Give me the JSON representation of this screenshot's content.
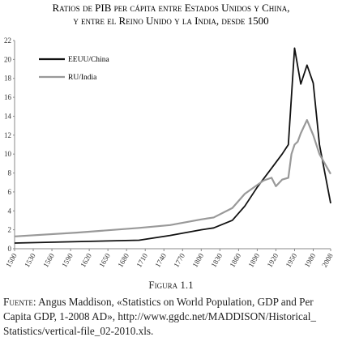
{
  "chart_data": {
    "type": "line",
    "title": [
      "Ratios de PIB per cápita entre Estados Unidos y China,",
      "y entre el Reino Unido y la India, desde 1500"
    ],
    "series": [
      {
        "name": "EEUU/China",
        "color": "#111111",
        "x": [
          1500,
          1600,
          1700,
          1750,
          1800,
          1820,
          1850,
          1870,
          1890,
          1913,
          1930,
          1940,
          1950,
          1960,
          1970,
          1980,
          1990,
          2008
        ],
        "values": [
          0.6,
          0.75,
          0.9,
          1.4,
          2.0,
          2.2,
          3.0,
          4.5,
          6.5,
          8.5,
          10,
          11,
          21.2,
          17.4,
          19.4,
          17.5,
          11,
          4.8
        ]
      },
      {
        "name": "RU/India",
        "color": "#999999",
        "x": [
          1500,
          1600,
          1700,
          1750,
          1800,
          1820,
          1850,
          1870,
          1900,
          1913,
          1920,
          1930,
          1940,
          1945,
          1950,
          1955,
          1960,
          1970,
          1980,
          1990,
          2008
        ],
        "values": [
          1.3,
          1.7,
          2.2,
          2.5,
          3.1,
          3.3,
          4.3,
          5.8,
          7.2,
          7.5,
          6.6,
          7.3,
          7.5,
          10,
          11,
          11.3,
          12.2,
          13.6,
          12,
          10,
          7.9
        ]
      }
    ],
    "xlim": [
      1500,
      2008
    ],
    "xticks": [
      1500,
      1530,
      1560,
      1590,
      1620,
      1650,
      1680,
      1710,
      1740,
      1770,
      1800,
      1830,
      1860,
      1890,
      1920,
      1950,
      1980,
      2008
    ],
    "ylim": [
      0,
      22
    ],
    "yticks": [
      0,
      2,
      4,
      6,
      8,
      10,
      12,
      14,
      16,
      18,
      20,
      22
    ],
    "legend": "upper left"
  },
  "figure_label": "Figura 1.1",
  "source": {
    "label": "Fuente:",
    "text": "Angus Maddison, «Statistics on World Population, GDP and Per Capita GDP, 1-2008 AD», http://www.ggdc.net/MADDISON/Historical_ Statistics/vertical-file_02-2010.xls."
  }
}
